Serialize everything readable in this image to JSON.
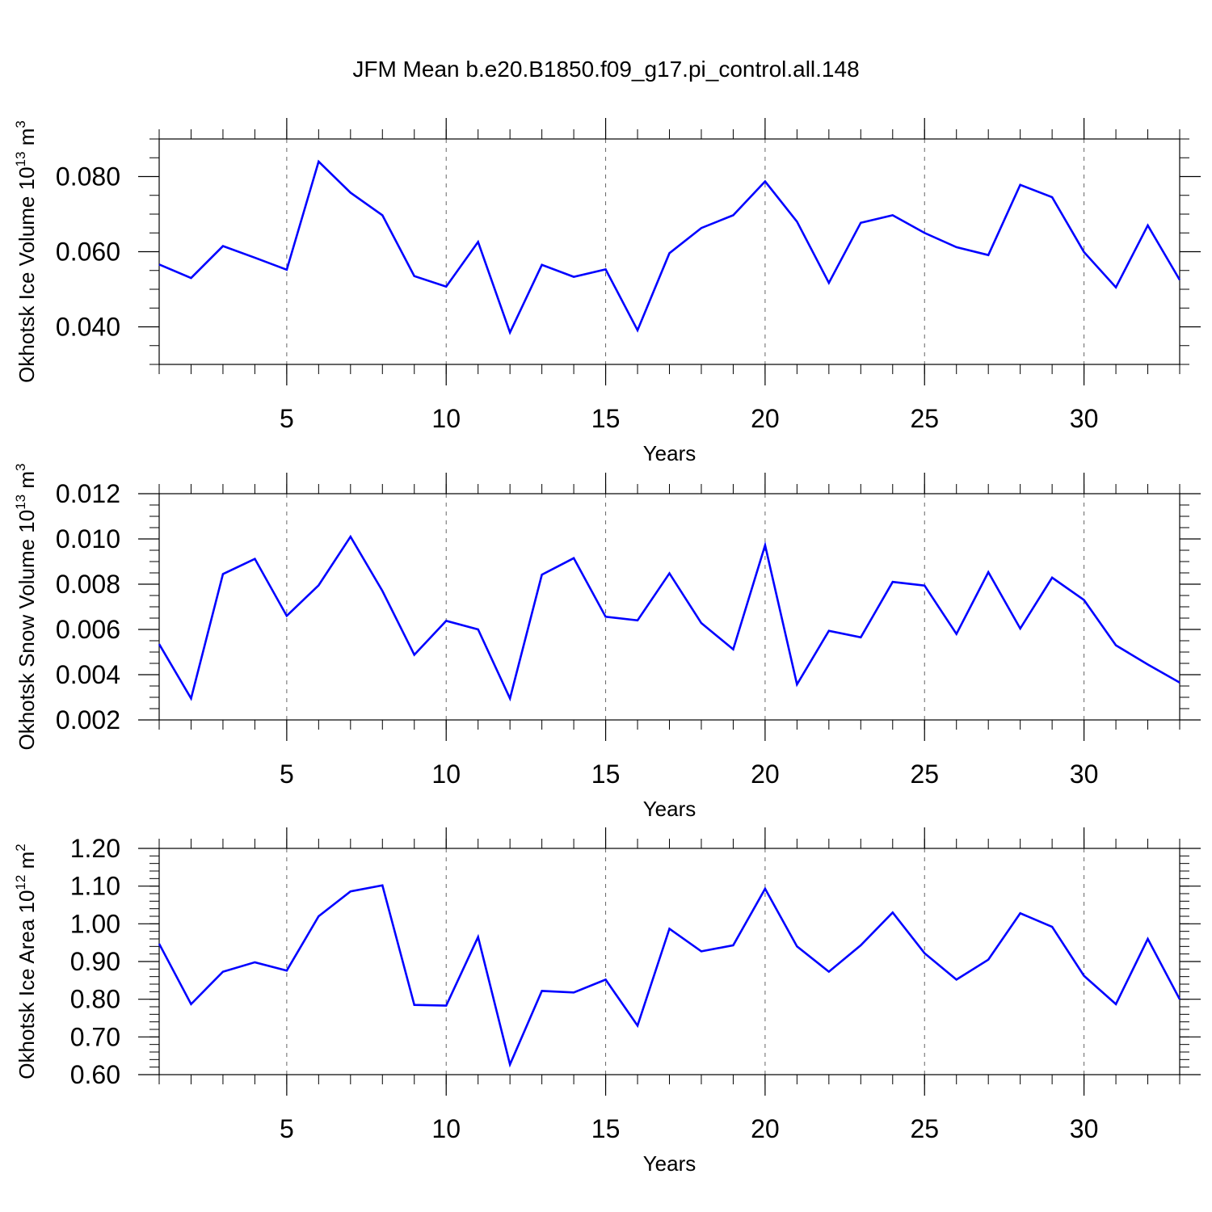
{
  "title": "JFM Mean b.e20.B1850.f09_g17.pi_control.all.148",
  "line_color": "#0000ff",
  "chart_data": [
    {
      "type": "line",
      "title": "",
      "xlabel": "Years",
      "ylabel": {
        "text": "Okhotsk Ice Volume 10",
        "sup": "13",
        "unit": " m",
        "unit_sup": "3"
      },
      "xlim": [
        1,
        33
      ],
      "ylim": [
        0.03,
        0.09
      ],
      "xticks": [
        5,
        10,
        15,
        20,
        25,
        30
      ],
      "yticks": [
        0.04,
        0.06,
        0.08
      ],
      "ytick_labels": [
        "0.040",
        "0.060",
        "0.080"
      ],
      "grid": "dashed vertical at x ticks",
      "series": [
        {
          "x": [
            1,
            2,
            3,
            4,
            5,
            6,
            7,
            8,
            9,
            10,
            11,
            12,
            13,
            14,
            15,
            16,
            17,
            18,
            19,
            20,
            21,
            22,
            23,
            24,
            25,
            26,
            27,
            28,
            29,
            30,
            31,
            32,
            33
          ],
          "values": [
            0.0566,
            0.053,
            0.0615,
            0.0584,
            0.0552,
            0.084,
            0.0757,
            0.0697,
            0.0535,
            0.0507,
            0.0626,
            0.0385,
            0.0565,
            0.0533,
            0.0553,
            0.0391,
            0.0596,
            0.0663,
            0.0697,
            0.0787,
            0.068,
            0.0517,
            0.0677,
            0.0697,
            0.065,
            0.0612,
            0.0591,
            0.0778,
            0.0745,
            0.0599,
            0.0505,
            0.067,
            0.0525
          ]
        }
      ]
    },
    {
      "type": "line",
      "title": "",
      "xlabel": "Years",
      "ylabel": {
        "text": "Okhotsk Snow Volume 10",
        "sup": "13",
        "unit": " m",
        "unit_sup": "3"
      },
      "xlim": [
        1,
        33
      ],
      "ylim": [
        0.002,
        0.012
      ],
      "xticks": [
        5,
        10,
        15,
        20,
        25,
        30
      ],
      "yticks": [
        0.002,
        0.004,
        0.006,
        0.008,
        0.01,
        0.012
      ],
      "ytick_labels": [
        "0.002",
        "0.004",
        "0.006",
        "0.008",
        "0.010",
        "0.012"
      ],
      "grid": "dashed vertical at x ticks",
      "series": [
        {
          "x": [
            1,
            2,
            3,
            4,
            5,
            6,
            7,
            8,
            9,
            10,
            11,
            12,
            13,
            14,
            15,
            16,
            17,
            18,
            19,
            20,
            21,
            22,
            23,
            24,
            25,
            26,
            27,
            28,
            29,
            30,
            31,
            32,
            33
          ],
          "values": [
            0.00535,
            0.00295,
            0.00845,
            0.00912,
            0.0066,
            0.00795,
            0.0101,
            0.0077,
            0.00488,
            0.00638,
            0.006,
            0.00295,
            0.00842,
            0.00915,
            0.00656,
            0.0064,
            0.00848,
            0.00628,
            0.00512,
            0.00972,
            0.00357,
            0.00594,
            0.00565,
            0.0081,
            0.00794,
            0.0058,
            0.00853,
            0.00604,
            0.00829,
            0.0073,
            0.0053,
            0.00445,
            0.00365
          ]
        }
      ]
    },
    {
      "type": "line",
      "title": "",
      "xlabel": "Years",
      "ylabel": {
        "text": "Okhotsk Ice Area 10",
        "sup": "12",
        "unit": " m",
        "unit_sup": "2"
      },
      "xlim": [
        1,
        33
      ],
      "ylim": [
        0.6,
        1.2
      ],
      "xticks": [
        5,
        10,
        15,
        20,
        25,
        30
      ],
      "yticks": [
        0.6,
        0.7,
        0.8,
        0.9,
        1.0,
        1.1,
        1.2
      ],
      "ytick_labels": [
        "0.60",
        "0.70",
        "0.80",
        "0.90",
        "1.00",
        "1.10",
        "1.20"
      ],
      "grid": "dashed vertical at x ticks",
      "series": [
        {
          "x": [
            1,
            2,
            3,
            4,
            5,
            6,
            7,
            8,
            9,
            10,
            11,
            12,
            13,
            14,
            15,
            16,
            17,
            18,
            19,
            20,
            21,
            22,
            23,
            24,
            25,
            26,
            27,
            28,
            29,
            30,
            31,
            32,
            33
          ],
          "values": [
            0.947,
            0.787,
            0.873,
            0.898,
            0.876,
            1.02,
            1.086,
            1.102,
            0.785,
            0.783,
            0.965,
            0.627,
            0.822,
            0.818,
            0.852,
            0.73,
            0.987,
            0.927,
            0.943,
            1.093,
            0.94,
            0.873,
            0.943,
            1.03,
            0.922,
            0.852,
            0.905,
            1.028,
            0.992,
            0.862,
            0.787,
            0.96,
            0.8
          ]
        }
      ]
    }
  ]
}
